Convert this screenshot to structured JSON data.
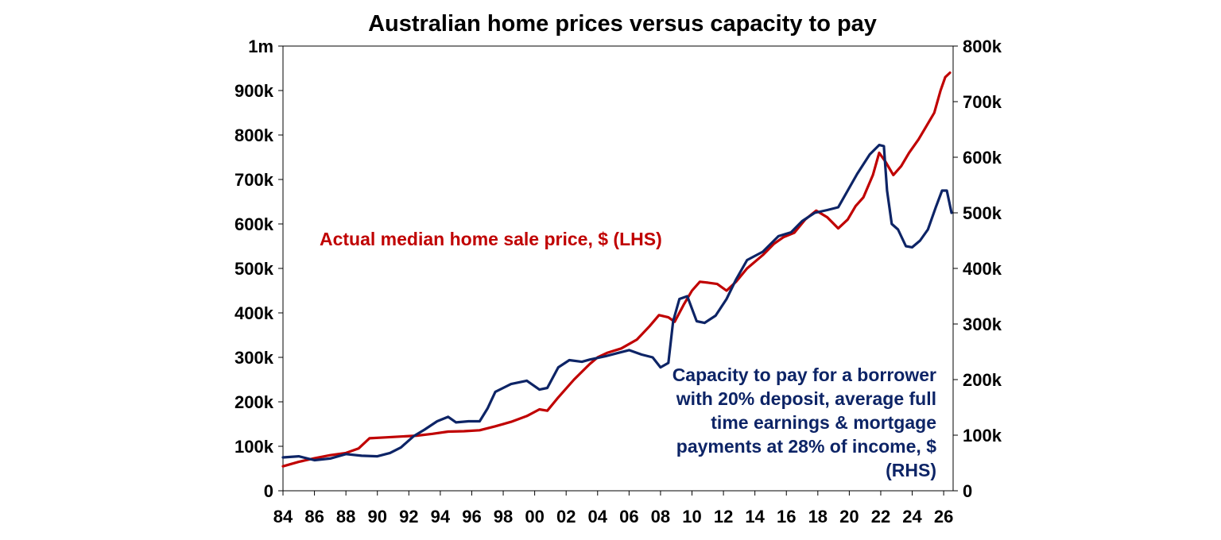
{
  "chart_data": {
    "type": "line",
    "title": "Australian home prices versus capacity to pay",
    "xlabel": "",
    "ylabel": "",
    "x_tick_labels": [
      "84",
      "86",
      "88",
      "90",
      "92",
      "94",
      "96",
      "98",
      "00",
      "02",
      "04",
      "06",
      "08",
      "10",
      "12",
      "14",
      "16",
      "18",
      "20",
      "22",
      "24",
      "26"
    ],
    "x_range": [
      1984,
      2026.6
    ],
    "left_axis": {
      "range": [
        0,
        1000000
      ],
      "tick_labels": [
        "0",
        "100k",
        "200k",
        "300k",
        "400k",
        "500k",
        "600k",
        "700k",
        "800k",
        "900k",
        "1m"
      ]
    },
    "right_axis": {
      "range": [
        0,
        800000
      ],
      "tick_labels": [
        "0",
        "100k",
        "200k",
        "300k",
        "400k",
        "500k",
        "600k",
        "700k",
        "800k"
      ]
    },
    "grid": false,
    "legend": "none",
    "annotations": {
      "price": "Actual median home sale price, $ (LHS)",
      "capacity": [
        "Capacity to pay for a borrower",
        "with 20% deposit, average full",
        "time earnings & mortgage",
        "payments at 28% of income, $",
        "(RHS)"
      ]
    },
    "series": [
      {
        "name": "Actual median home sale price, $ (LHS)",
        "axis": "left",
        "color": "#c00000",
        "points": [
          [
            1984.0,
            55000
          ],
          [
            1985.0,
            65000
          ],
          [
            1986.0,
            73000
          ],
          [
            1987.0,
            80000
          ],
          [
            1988.0,
            85000
          ],
          [
            1988.8,
            95000
          ],
          [
            1989.5,
            118000
          ],
          [
            1990.5,
            120000
          ],
          [
            1991.5,
            122000
          ],
          [
            1992.5,
            124000
          ],
          [
            1993.5,
            128000
          ],
          [
            1994.5,
            133000
          ],
          [
            1995.5,
            134000
          ],
          [
            1996.5,
            136000
          ],
          [
            1997.5,
            145000
          ],
          [
            1998.5,
            155000
          ],
          [
            1999.5,
            168000
          ],
          [
            2000.3,
            183000
          ],
          [
            2000.8,
            180000
          ],
          [
            2001.5,
            210000
          ],
          [
            2002.5,
            250000
          ],
          [
            2003.5,
            285000
          ],
          [
            2004.0,
            300000
          ],
          [
            2004.6,
            310000
          ],
          [
            2005.5,
            320000
          ],
          [
            2006.5,
            340000
          ],
          [
            2007.3,
            370000
          ],
          [
            2007.9,
            395000
          ],
          [
            2008.5,
            390000
          ],
          [
            2008.9,
            380000
          ],
          [
            2009.5,
            420000
          ],
          [
            2010.0,
            450000
          ],
          [
            2010.5,
            470000
          ],
          [
            2011.0,
            468000
          ],
          [
            2011.6,
            465000
          ],
          [
            2012.2,
            450000
          ],
          [
            2012.8,
            470000
          ],
          [
            2013.5,
            500000
          ],
          [
            2014.5,
            530000
          ],
          [
            2015.2,
            555000
          ],
          [
            2015.8,
            570000
          ],
          [
            2016.5,
            580000
          ],
          [
            2017.2,
            610000
          ],
          [
            2017.9,
            630000
          ],
          [
            2018.6,
            615000
          ],
          [
            2019.3,
            590000
          ],
          [
            2019.9,
            610000
          ],
          [
            2020.4,
            640000
          ],
          [
            2020.9,
            660000
          ],
          [
            2021.5,
            710000
          ],
          [
            2021.9,
            760000
          ],
          [
            2022.3,
            740000
          ],
          [
            2022.8,
            710000
          ],
          [
            2023.3,
            730000
          ],
          [
            2023.8,
            760000
          ],
          [
            2024.4,
            790000
          ],
          [
            2024.9,
            820000
          ],
          [
            2025.4,
            850000
          ],
          [
            2025.8,
            900000
          ],
          [
            2026.1,
            930000
          ],
          [
            2026.4,
            940000
          ]
        ]
      },
      {
        "name": "Capacity to pay for a borrower with 20% deposit, average full time earnings & mortgage payments at 28% of income, $ (RHS)",
        "axis": "right",
        "color": "#0d2466",
        "points": [
          [
            1984.0,
            60000
          ],
          [
            1985.0,
            62000
          ],
          [
            1986.0,
            55000
          ],
          [
            1987.0,
            58000
          ],
          [
            1988.0,
            66000
          ],
          [
            1989.0,
            63000
          ],
          [
            1990.0,
            62000
          ],
          [
            1990.8,
            68000
          ],
          [
            1991.5,
            78000
          ],
          [
            1992.3,
            98000
          ],
          [
            1993.0,
            110000
          ],
          [
            1993.8,
            125000
          ],
          [
            1994.5,
            133000
          ],
          [
            1995.0,
            123000
          ],
          [
            1995.8,
            125000
          ],
          [
            1996.5,
            125000
          ],
          [
            1997.0,
            148000
          ],
          [
            1997.5,
            178000
          ],
          [
            1998.5,
            192000
          ],
          [
            1999.5,
            198000
          ],
          [
            2000.3,
            182000
          ],
          [
            2000.8,
            185000
          ],
          [
            2001.5,
            222000
          ],
          [
            2002.2,
            235000
          ],
          [
            2003.0,
            232000
          ],
          [
            2003.5,
            236000
          ],
          [
            2004.5,
            242000
          ],
          [
            2005.3,
            248000
          ],
          [
            2006.0,
            253000
          ],
          [
            2006.8,
            245000
          ],
          [
            2007.5,
            240000
          ],
          [
            2008.0,
            222000
          ],
          [
            2008.5,
            230000
          ],
          [
            2008.8,
            305000
          ],
          [
            2009.2,
            345000
          ],
          [
            2009.7,
            350000
          ],
          [
            2010.3,
            305000
          ],
          [
            2010.8,
            302000
          ],
          [
            2011.5,
            315000
          ],
          [
            2012.2,
            345000
          ],
          [
            2012.8,
            380000
          ],
          [
            2013.5,
            415000
          ],
          [
            2014.5,
            430000
          ],
          [
            2015.5,
            458000
          ],
          [
            2016.3,
            465000
          ],
          [
            2017.0,
            485000
          ],
          [
            2017.8,
            500000
          ],
          [
            2018.6,
            505000
          ],
          [
            2019.3,
            510000
          ],
          [
            2019.9,
            540000
          ],
          [
            2020.5,
            570000
          ],
          [
            2021.3,
            605000
          ],
          [
            2021.9,
            622000
          ],
          [
            2022.2,
            620000
          ],
          [
            2022.4,
            540000
          ],
          [
            2022.7,
            480000
          ],
          [
            2023.1,
            470000
          ],
          [
            2023.6,
            440000
          ],
          [
            2024.0,
            438000
          ],
          [
            2024.5,
            450000
          ],
          [
            2025.0,
            470000
          ],
          [
            2025.5,
            510000
          ],
          [
            2025.9,
            540000
          ],
          [
            2026.2,
            540000
          ],
          [
            2026.5,
            500000
          ]
        ]
      }
    ]
  }
}
